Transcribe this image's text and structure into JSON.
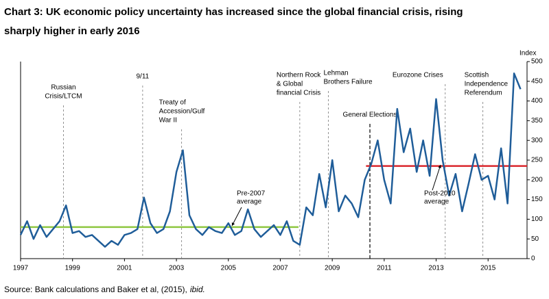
{
  "chart_data": {
    "type": "line",
    "title": [
      "Chart 3: UK economic policy uncertainty has increased since the global financial crisis, rising",
      "sharply higher in early 2016"
    ],
    "y_axis_label": "Index",
    "x": [
      1997.0,
      1997.25,
      1997.5,
      1997.75,
      1998.0,
      1998.25,
      1998.5,
      1998.75,
      1999.0,
      1999.25,
      1999.5,
      1999.75,
      2000.0,
      2000.25,
      2000.5,
      2000.75,
      2001.0,
      2001.25,
      2001.5,
      2001.75,
      2002.0,
      2002.25,
      2002.5,
      2002.75,
      2003.0,
      2003.25,
      2003.5,
      2003.75,
      2004.0,
      2004.25,
      2004.5,
      2004.75,
      2005.0,
      2005.25,
      2005.5,
      2005.75,
      2006.0,
      2006.25,
      2006.5,
      2006.75,
      2007.0,
      2007.25,
      2007.5,
      2007.75,
      2008.0,
      2008.25,
      2008.5,
      2008.75,
      2009.0,
      2009.25,
      2009.5,
      2009.75,
      2010.0,
      2010.25,
      2010.5,
      2010.75,
      2011.0,
      2011.25,
      2011.5,
      2011.75,
      2012.0,
      2012.25,
      2012.5,
      2012.75,
      2013.0,
      2013.25,
      2013.5,
      2013.75,
      2014.0,
      2014.25,
      2014.5,
      2014.75,
      2015.0,
      2015.25,
      2015.5,
      2015.75,
      2016.0,
      2016.25
    ],
    "series": [
      {
        "name": "UK economic policy uncertainty",
        "color": "#1f5d99",
        "values": [
          60,
          95,
          50,
          85,
          55,
          75,
          95,
          135,
          65,
          70,
          55,
          60,
          45,
          30,
          45,
          35,
          60,
          65,
          75,
          155,
          90,
          65,
          75,
          120,
          220,
          275,
          110,
          75,
          60,
          80,
          70,
          65,
          90,
          60,
          70,
          125,
          75,
          55,
          70,
          85,
          60,
          95,
          45,
          35,
          130,
          110,
          215,
          130,
          250,
          120,
          160,
          140,
          105,
          200,
          240,
          300,
          200,
          140,
          380,
          270,
          330,
          220,
          300,
          210,
          405,
          250,
          160,
          215,
          120,
          190,
          265,
          200,
          210,
          150,
          280,
          140,
          470,
          430
        ]
      }
    ],
    "xlim": [
      1997,
      2016.5
    ],
    "xticks": [
      1997,
      1999,
      2001,
      2003,
      2005,
      2007,
      2009,
      2011,
      2013,
      2015
    ],
    "ylim": [
      0,
      500
    ],
    "yticks": [
      0,
      50,
      100,
      150,
      200,
      250,
      300,
      350,
      400,
      450,
      500
    ],
    "reference_lines": [
      {
        "text": [
          "Pre-2007",
          "average"
        ],
        "value": 80,
        "from": 1997,
        "to": 2007.7,
        "color": "#8dc63f"
      },
      {
        "text": [
          "Post-2010",
          "average"
        ],
        "value": 235,
        "from": 2010.3,
        "to": 2016.5,
        "color": "#d9262c"
      }
    ],
    "annotations": [
      {
        "text": [
          "Russian",
          "Crisis/LTCM"
        ],
        "x": 1998.65
      },
      {
        "text": [
          "9/11"
        ],
        "x": 2001.7
      },
      {
        "text": [
          "Treaty of",
          "Accession/Gulf",
          "War II"
        ],
        "x": 2003.2
      },
      {
        "text": [
          "Northern Rock",
          "& Global",
          "financial Crisis"
        ],
        "x": 2007.75
      },
      {
        "text": [
          "Lehman",
          "Brothers Failure"
        ],
        "x": 2008.85
      },
      {
        "text": [
          "General Elections"
        ],
        "x": 2010.45
      },
      {
        "text": [
          "Eurozone Crises"
        ],
        "x": 2013.35
      },
      {
        "text": [
          "Scottish",
          "Independence",
          "Referendum"
        ],
        "x": 2014.8
      }
    ],
    "source": [
      "Source: Bank calculations and Baker et al, (2015),",
      "ibid."
    ]
  }
}
